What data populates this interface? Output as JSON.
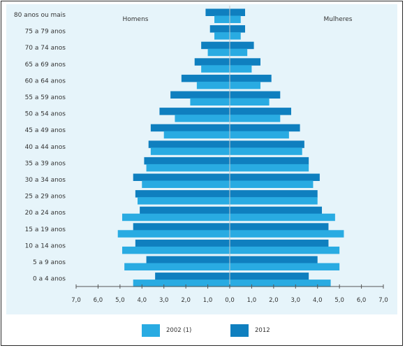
{
  "chart_data": {
    "type": "bar",
    "orientation": "horizontal",
    "layout": "population-pyramid",
    "categories": [
      "80 anos ou mais",
      "75 a 79 anos",
      "70 a 74 anos",
      "65 a 69 anos",
      "60 a 64 anos",
      "55 a 59 anos",
      "50 a 54 anos",
      "45 a 49 anos",
      "40 a 44 anos",
      "35 a 39 anos",
      "30 a 34 anos",
      "25 a 29 anos",
      "20 a 24 anos",
      "15 a 19 anos",
      "10 a 14 anos",
      "5 a 9 anos",
      "0 a 4 anos"
    ],
    "left_label": "Homens",
    "right_label": "Mulheres",
    "xlim": [
      -7,
      7
    ],
    "x_ticks": [
      -7,
      -6,
      -5,
      -4,
      -3,
      -2,
      -1,
      0,
      1,
      2,
      3,
      4,
      5,
      6,
      7
    ],
    "x_tick_labels": [
      "7,0",
      "6,0",
      "5,0",
      "4,0",
      "3,0",
      "2,0",
      "1,0",
      "0,0",
      "1,0",
      "2,0",
      "3,0",
      "4,0",
      "5,0",
      "6,0",
      "7,0"
    ],
    "colors": {
      "2002": "#29abe2",
      "2012": "#0f7fbf",
      "axis": "#555555",
      "panel": "#e6f4fa"
    },
    "series": [
      {
        "name": "2002 (1)",
        "key": "2002",
        "homens": [
          0.7,
          0.7,
          1.0,
          1.3,
          1.5,
          1.8,
          2.5,
          3.0,
          3.6,
          3.8,
          4.0,
          4.2,
          4.9,
          5.1,
          4.9,
          4.8,
          4.4
        ],
        "mulheres": [
          0.5,
          0.5,
          0.8,
          1.0,
          1.4,
          1.8,
          2.3,
          2.7,
          3.3,
          3.6,
          3.8,
          4.0,
          4.8,
          5.2,
          5.0,
          5.0,
          4.6
        ]
      },
      {
        "name": "2012",
        "key": "2012",
        "homens": [
          1.1,
          0.9,
          1.3,
          1.6,
          2.2,
          2.7,
          3.2,
          3.6,
          3.7,
          3.9,
          4.4,
          4.3,
          4.1,
          4.4,
          4.3,
          3.8,
          3.4
        ],
        "mulheres": [
          0.7,
          0.7,
          1.1,
          1.4,
          1.9,
          2.3,
          2.8,
          3.2,
          3.4,
          3.6,
          4.1,
          4.0,
          4.2,
          4.5,
          4.5,
          4.0,
          3.6
        ]
      }
    ]
  },
  "legend": {
    "label_2002": "2002 (1)",
    "label_2012": "2012"
  }
}
